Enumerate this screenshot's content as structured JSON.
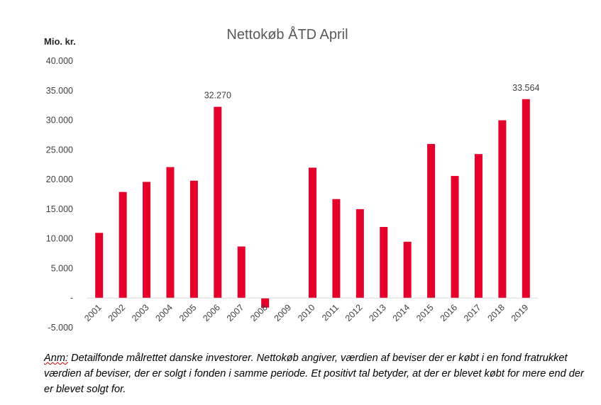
{
  "chart_data": {
    "type": "bar",
    "title": "Nettokøb ÅTD April",
    "ylabel": "Mio. kr.",
    "xlabel": "",
    "categories": [
      "2001",
      "2002",
      "2003",
      "2004",
      "2005",
      "2006",
      "2007",
      "2008",
      "2009",
      "2010",
      "2011",
      "2012",
      "2013",
      "2014",
      "2015",
      "2016",
      "2017",
      "2018",
      "2019"
    ],
    "values": [
      11000,
      17900,
      19600,
      22100,
      19800,
      32270,
      8700,
      -1600,
      0,
      22000,
      16700,
      15000,
      12000,
      9500,
      26000,
      20600,
      24300,
      30000,
      33564
    ],
    "ylim": [
      -5000,
      40000
    ],
    "yticks": [
      40000,
      35000,
      30000,
      25000,
      20000,
      15000,
      10000,
      5000,
      0,
      -5000
    ],
    "ytick_labels": [
      "40.000",
      "35.000",
      "30.000",
      "25.000",
      "20.000",
      "15.000",
      "10.000",
      "5.000",
      "-",
      "-5.000"
    ],
    "data_labels": [
      {
        "category": "2006",
        "text": "32.270"
      },
      {
        "category": "2019",
        "text": "33.564"
      }
    ],
    "grid": false,
    "legend": false,
    "bar_color": "#e4002b"
  },
  "note": {
    "prefix": "Anm:",
    "text": " Detailfonde målrettet danske investorer. Nettokøb angiver, værdien af beviser der er købt i en fond fratrukket værdien af beviser, der er solgt i fonden i samme periode. Et positivt tal betyder, at der er blevet købt for mere end der er blevet solgt for."
  }
}
